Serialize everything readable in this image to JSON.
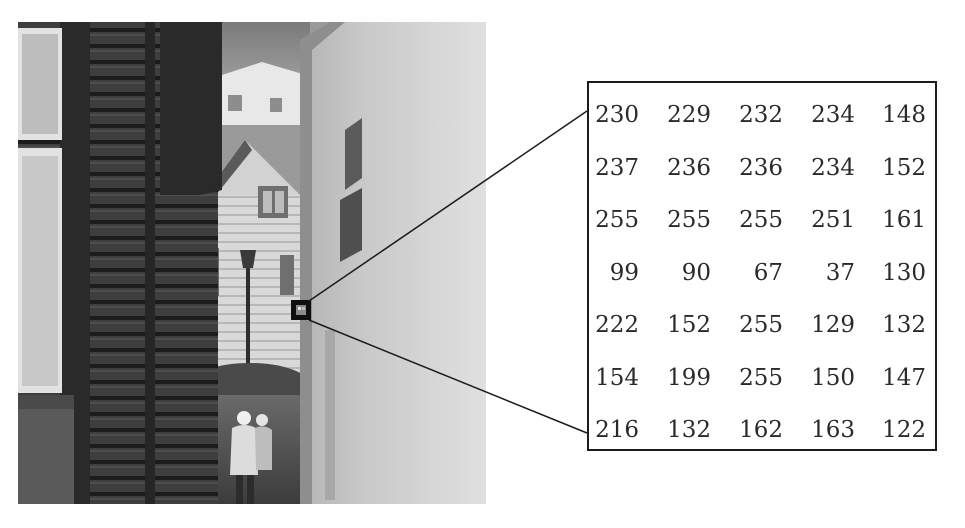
{
  "figure": {
    "scene": "grayscale-photo-narrow-alley",
    "magnified_region": "pixel-intensity-grid",
    "colors": {
      "background": "#ffffff",
      "frame": "#1c1c1c",
      "text": "#2a2a2a"
    }
  },
  "pixel_grid": {
    "rows": [
      [
        "230",
        "229",
        "232",
        "234",
        "148"
      ],
      [
        "237",
        "236",
        "236",
        "234",
        "152"
      ],
      [
        "255",
        "255",
        "255",
        "251",
        "161"
      ],
      [
        "99",
        "90",
        "67",
        "37",
        "130"
      ],
      [
        "222",
        "152",
        "255",
        "129",
        "132"
      ],
      [
        "154",
        "199",
        "255",
        "150",
        "147"
      ],
      [
        "216",
        "132",
        "162",
        "163",
        "122"
      ]
    ]
  }
}
